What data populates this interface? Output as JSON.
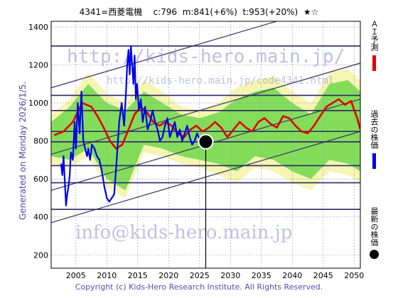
{
  "header": {
    "code_name": "4341=西菱電機",
    "current": "c:796",
    "mid": "m:841(+6%)",
    "target": "t:953(+20%)",
    "stars": "★☆"
  },
  "side_text": "Generated on Monday 2026/1/5.",
  "watermark": {
    "url_top": "http://kids-hero.main.jp/",
    "url_small": "http://kids-hero.main.jp/code4341.html",
    "email": "info@kids-hero.main.jp"
  },
  "legend": [
    {
      "label": "ＡＩ予測",
      "color": "#e00000"
    },
    {
      "label": "過去の株価",
      "color": "#0000dd"
    },
    {
      "label": "最新の株価",
      "color": "#000000"
    }
  ],
  "footer": "Copyright (c) Kids-Hero Research Institute. All Rights Reserved.",
  "colors": {
    "prediction": "#e00000",
    "past_price": "#0000ee",
    "band_green": "#6fd84a",
    "band_yellow": "#f4f3a6",
    "hline": "#2a2a60",
    "channel": "#40406a",
    "grid": "#9a9ab0"
  },
  "chart_data": {
    "type": "line",
    "xlim": [
      2001,
      2051
    ],
    "ylim": [
      130,
      1430
    ],
    "x_ticks": [
      2005,
      2010,
      2015,
      2020,
      2025,
      2030,
      2035,
      2040,
      2045,
      2050
    ],
    "y_ticks": [
      200,
      400,
      600,
      800,
      1000,
      1200,
      1400
    ],
    "grid": true,
    "latest": {
      "x": 2026.0,
      "y": 796
    },
    "horizontal_lines": [
      1300,
      1040,
      960,
      850,
      795,
      670,
      580,
      440
    ],
    "channel_lines": [
      {
        "x": [
          2001,
          2051
        ],
        "y": [
          1080,
          1560
        ]
      },
      {
        "x": [
          2001,
          2051
        ],
        "y": [
          730,
          1210
        ]
      },
      {
        "x": [
          2001,
          2051
        ],
        "y": [
          540,
          1020
        ]
      },
      {
        "x": [
          2001,
          2051
        ],
        "y": [
          370,
          850
        ]
      }
    ],
    "series": [
      {
        "name": "ＡＩ予測",
        "x": [
          2001.5,
          2003,
          2004.5,
          2006,
          2007.5,
          2008.5,
          2009.5,
          2010.5,
          2011.5,
          2012.5,
          2013.5,
          2014.5,
          2015.5,
          2016.5,
          2017.5,
          2018.5,
          2019.5,
          2020.5,
          2021.5,
          2022.5,
          2023.5,
          2024.5,
          2025.5,
          2026.5,
          2027.5,
          2028.5,
          2029.5,
          2030.5,
          2031.5,
          2032.5,
          2033.5,
          2034.5,
          2035.5,
          2036.5,
          2037.5,
          2038.5,
          2039.5,
          2040.5,
          2041.5,
          2042.5,
          2043.5,
          2044.5,
          2045.5,
          2046.5,
          2047.5,
          2048.5,
          2049.5,
          2050.5,
          2051
        ],
        "y": [
          830,
          850,
          900,
          1000,
          980,
          930,
          870,
          800,
          760,
          780,
          860,
          940,
          980,
          950,
          900,
          880,
          900,
          880,
          840,
          820,
          860,
          880,
          850,
          870,
          900,
          870,
          820,
          860,
          900,
          870,
          850,
          900,
          920,
          890,
          870,
          930,
          920,
          880,
          850,
          840,
          880,
          930,
          980,
          1000,
          1020,
          990,
          1010,
          920,
          860
        ]
      },
      {
        "name": "過去の株価",
        "x": [
          2002.6,
          2002.8,
          2003.0,
          2003.4,
          2003.6,
          2003.8,
          2004.0,
          2004.2,
          2004.5,
          2004.8,
          2005.0,
          2005.3,
          2005.6,
          2005.9,
          2006.2,
          2006.5,
          2006.8,
          2007.0,
          2007.3,
          2007.6,
          2008.0,
          2008.4,
          2008.8,
          2009.2,
          2009.6,
          2010.0,
          2010.4,
          2010.8,
          2011.2,
          2011.6,
          2012.0,
          2012.4,
          2012.8,
          2013.1,
          2013.3,
          2013.5,
          2013.7,
          2013.9,
          2014.1,
          2014.3,
          2014.5,
          2014.7,
          2014.9,
          2015.2,
          2015.5,
          2015.8,
          2016.2,
          2016.6,
          2017.0,
          2017.4,
          2017.8,
          2018.2,
          2018.6,
          2019.0,
          2019.4,
          2019.8,
          2020.2,
          2020.6,
          2021.0,
          2021.4,
          2021.8,
          2022.2,
          2022.6,
          2023.0,
          2023.4,
          2023.8,
          2024.2,
          2024.6,
          2025.0,
          2025.4,
          2025.8,
          2026.0
        ],
        "y": [
          680,
          620,
          720,
          460,
          520,
          560,
          620,
          740,
          700,
          900,
          760,
          1000,
          840,
          1060,
          800,
          760,
          720,
          760,
          700,
          780,
          760,
          720,
          700,
          640,
          560,
          500,
          480,
          500,
          520,
          700,
          900,
          1000,
          880,
          1060,
          1200,
          1280,
          1150,
          1300,
          1200,
          1100,
          1250,
          1020,
          1100,
          960,
          1020,
          900,
          980,
          860,
          900,
          960,
          900,
          860,
          800,
          820,
          880,
          920,
          820,
          860,
          900,
          820,
          860,
          800,
          840,
          880,
          820,
          780,
          800,
          840,
          810,
          780,
          790,
          796
        ]
      }
    ],
    "band_bounds": {
      "x": [
        2001,
        2004,
        2007,
        2010,
        2013,
        2016,
        2019,
        2022,
        2025,
        2028,
        2031,
        2034,
        2037,
        2040,
        2043,
        2046,
        2049,
        2051
      ],
      "green_upper": [
        900,
        980,
        1100,
        1000,
        960,
        1060,
        1000,
        940,
        920,
        950,
        1020,
        1060,
        1080,
        1000,
        940,
        1100,
        1120,
        1060
      ],
      "green_lower": [
        720,
        700,
        760,
        600,
        540,
        780,
        760,
        720,
        700,
        680,
        640,
        720,
        700,
        640,
        600,
        700,
        680,
        640
      ],
      "yellow_upper": [
        940,
        1020,
        1160,
        1050,
        1000,
        1120,
        1060,
        980,
        960,
        1000,
        1080,
        1120,
        1140,
        1060,
        1000,
        1160,
        1180,
        1120
      ],
      "yellow_lower": [
        680,
        660,
        720,
        560,
        500,
        740,
        720,
        680,
        660,
        620,
        580,
        660,
        640,
        580,
        540,
        640,
        620,
        580
      ]
    }
  }
}
